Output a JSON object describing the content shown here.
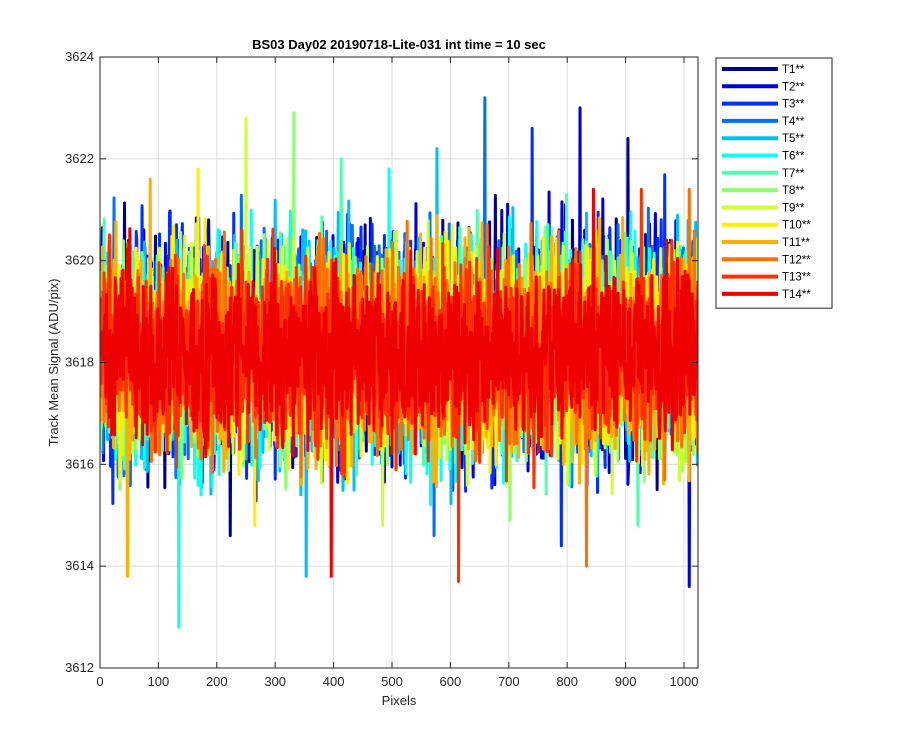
{
  "chart_data": {
    "type": "line",
    "title": "BS03 Day02 20190718-Lite-031 int time = 10 sec",
    "xlabel": "Pixels",
    "ylabel": "Track Mean Signal (ADU/pix)",
    "xlim": [
      0,
      1024
    ],
    "ylim": [
      3612,
      3624
    ],
    "xticks": [
      0,
      100,
      200,
      300,
      400,
      500,
      600,
      700,
      800,
      900,
      1000
    ],
    "yticks": [
      3612,
      3614,
      3616,
      3618,
      3620,
      3622,
      3624
    ],
    "grid": true,
    "legend_position": "outside-top-right",
    "n_points": 1024,
    "series": [
      {
        "name": "T1**",
        "color": "#00008F",
        "mean": 3618.3,
        "amplitude": 1.55,
        "max": 3622.4,
        "min": 3614.6
      },
      {
        "name": "T2**",
        "color": "#0000DF",
        "mean": 3618.3,
        "amplitude": 1.55,
        "max": 3623.0,
        "min": 3613.6
      },
      {
        "name": "T3**",
        "color": "#0030FF",
        "mean": 3618.3,
        "amplitude": 1.5,
        "max": 3622.6,
        "min": 3614.4
      },
      {
        "name": "T4**",
        "color": "#0070FF",
        "mean": 3618.3,
        "amplitude": 1.5,
        "max": 3623.2,
        "min": 3614.6
      },
      {
        "name": "T5**",
        "color": "#00BFFF",
        "mean": 3618.2,
        "amplitude": 1.5,
        "max": 3622.2,
        "min": 3613.8
      },
      {
        "name": "T6**",
        "color": "#10FFEF",
        "mean": 3618.2,
        "amplitude": 1.5,
        "max": 3621.8,
        "min": 3612.8
      },
      {
        "name": "T7**",
        "color": "#50FFAF",
        "mean": 3618.2,
        "amplitude": 1.4,
        "max": 3622.0,
        "min": 3614.8
      },
      {
        "name": "T8**",
        "color": "#8FFF70",
        "mean": 3618.2,
        "amplitude": 1.4,
        "max": 3622.9,
        "min": 3614.9
      },
      {
        "name": "T9**",
        "color": "#CFFF30",
        "mean": 3618.2,
        "amplitude": 1.4,
        "max": 3622.8,
        "min": 3614.8
      },
      {
        "name": "T10**",
        "color": "#FFEF00",
        "mean": 3618.2,
        "amplitude": 1.35,
        "max": 3621.8,
        "min": 3614.8
      },
      {
        "name": "T11**",
        "color": "#FFAF00",
        "mean": 3618.2,
        "amplitude": 1.35,
        "max": 3621.6,
        "min": 3613.8
      },
      {
        "name": "T12**",
        "color": "#FF7000",
        "mean": 3618.2,
        "amplitude": 1.3,
        "max": 3621.4,
        "min": 3614.0
      },
      {
        "name": "T13**",
        "color": "#FF3000",
        "mean": 3618.2,
        "amplitude": 1.25,
        "max": 3621.4,
        "min": 3613.7
      },
      {
        "name": "T14**",
        "color": "#EF0000",
        "mean": 3618.2,
        "amplitude": 1.2,
        "max": 3621.4,
        "min": 3613.8
      }
    ]
  }
}
